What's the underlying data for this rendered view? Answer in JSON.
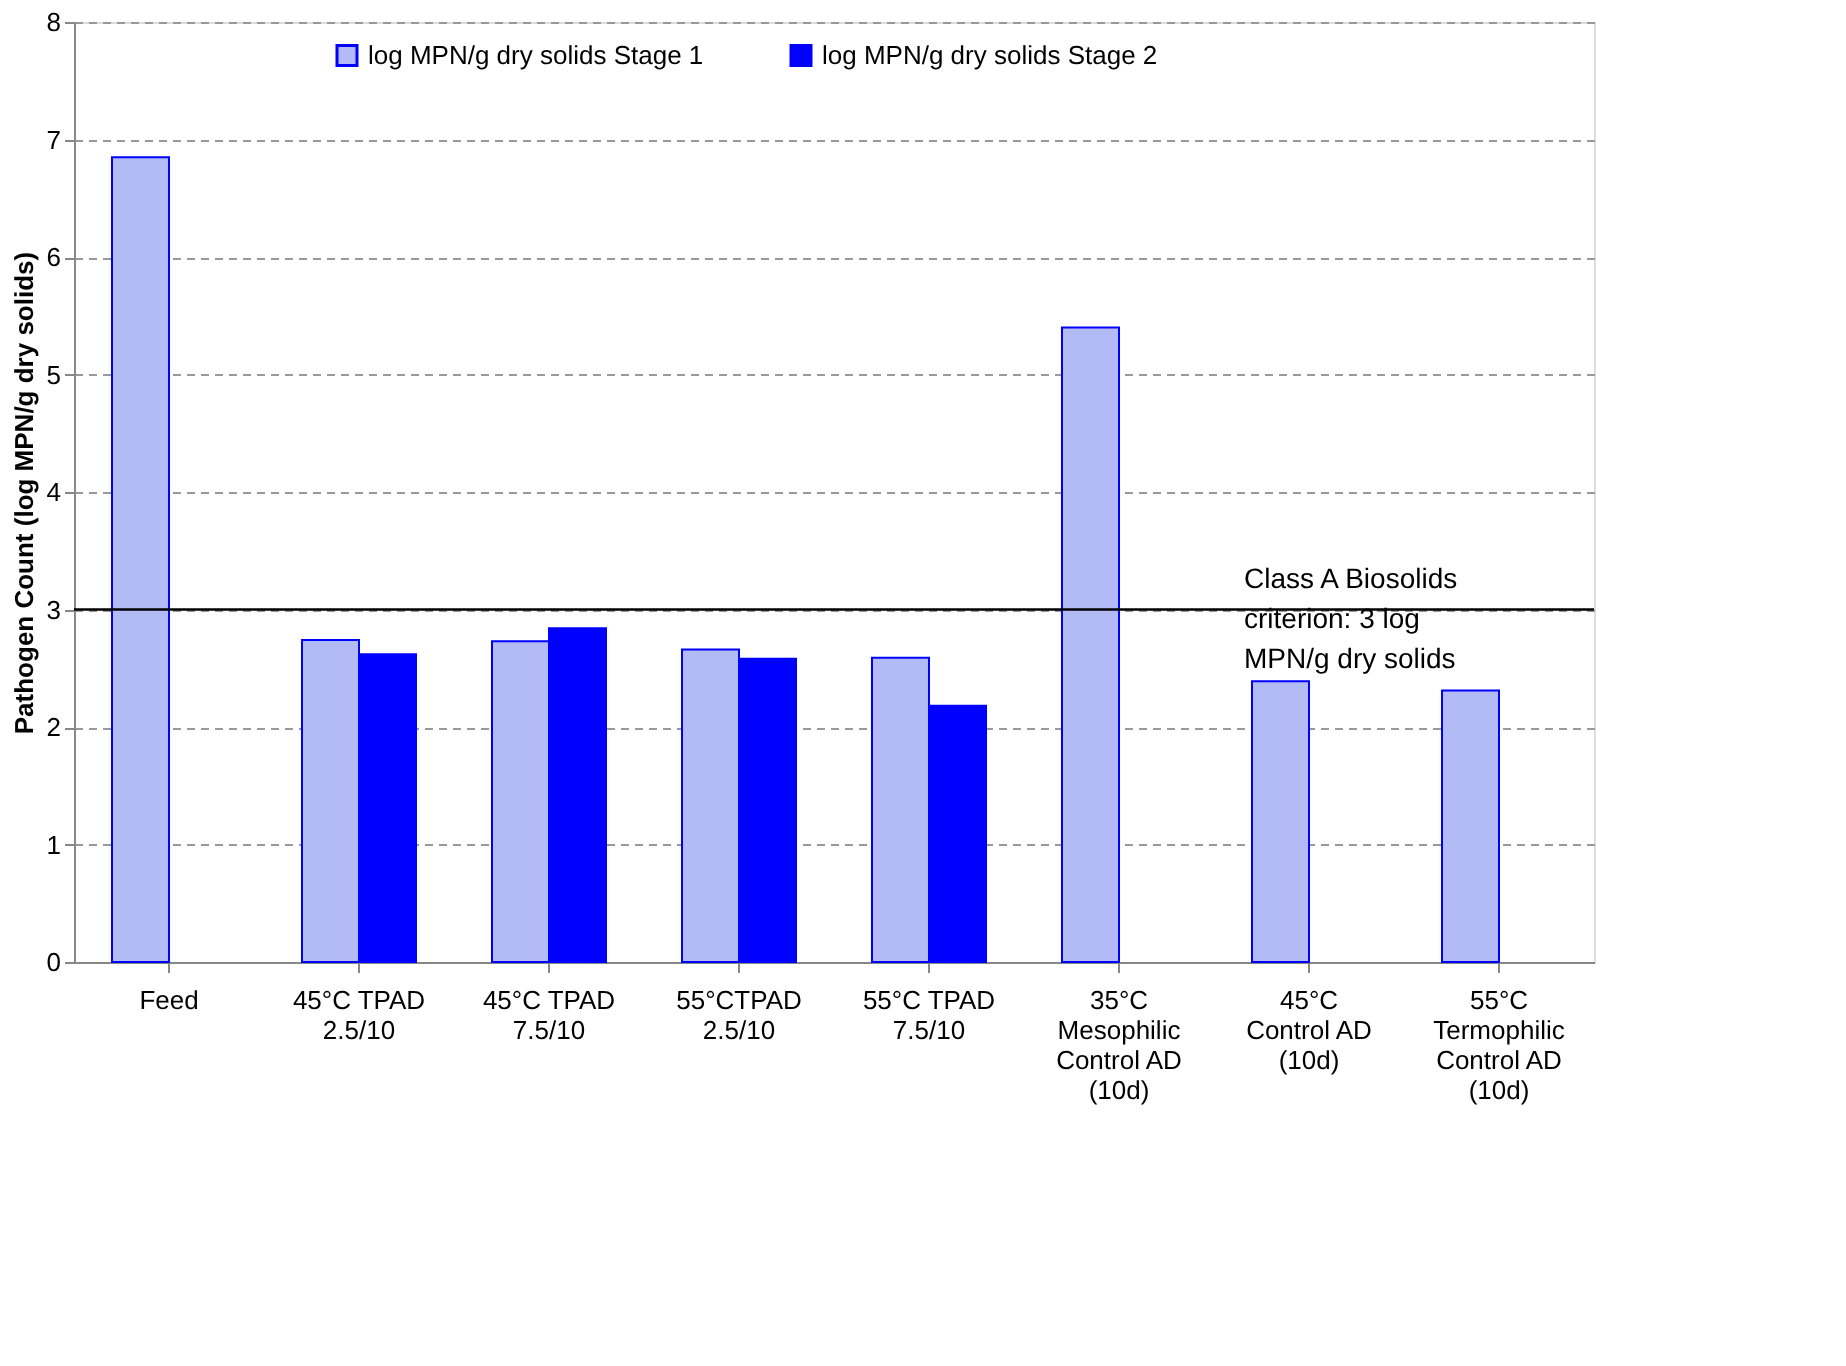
{
  "chart_data": {
    "type": "bar",
    "ylabel": "Pathogen Count (log MPN/g dry solids)",
    "categories": [
      "Feed",
      "45°C TPAD\n2.5/10",
      "45°C TPAD\n7.5/10",
      "55°CTPAD\n2.5/10",
      "55°C TPAD\n7.5/10",
      "35°C\nMesophilic\nControl AD\n(10d)",
      "45°C\nControl AD\n(10d)",
      "55°C\nTermophilic\nControl AD\n(10d)"
    ],
    "series": [
      {
        "name": "log MPN/g dry solids Stage 1",
        "color": "#b3bbf7",
        "values": [
          6.85,
          2.74,
          2.73,
          2.66,
          2.59,
          5.4,
          2.39,
          2.31
        ]
      },
      {
        "name": "log MPN/g dry solids Stage 2",
        "color": "#0000ff",
        "values": [
          null,
          2.62,
          2.84,
          2.58,
          2.18,
          null,
          null,
          null
        ]
      }
    ],
    "ylim": [
      0,
      8
    ],
    "yticks": [
      0,
      1,
      2,
      3,
      4,
      5,
      6,
      7,
      8
    ],
    "grid": "y",
    "legend": "top",
    "ref_lines": [
      {
        "axis": "y",
        "value": 3,
        "label": "Class A Biosolids\ncriterion: 3 log\nMPN/g dry solids",
        "color": "#000000"
      }
    ]
  }
}
